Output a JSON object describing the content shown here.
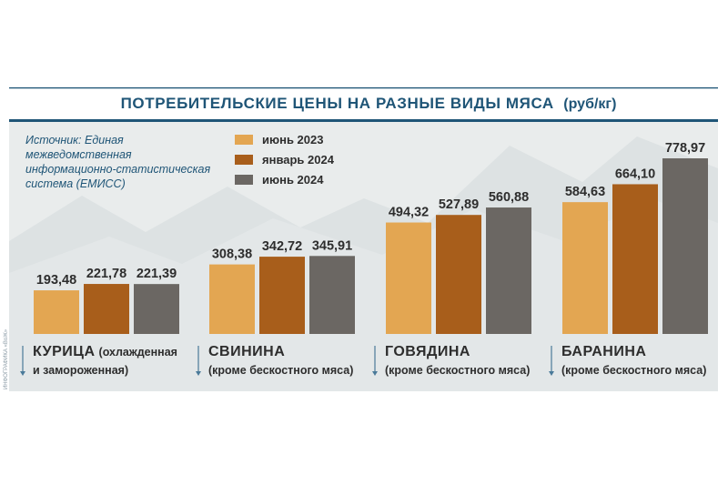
{
  "chart_data": {
    "type": "bar",
    "title": "ПОТРЕБИТЕЛЬСКИЕ ЦЕНЫ НА РАЗНЫЕ ВИДЫ МЯСА",
    "unit": "(руб/кг)",
    "source": [
      "Источник: Единая",
      "межведомственная",
      "информационно-статистическая",
      "система (ЕМИСС)"
    ],
    "credit": "ИНФОГРАФИКА «ВоЖ»",
    "categories": [
      {
        "main": "КУРИЦА",
        "suffix": "(охлажденная",
        "sub": "и замороженная)"
      },
      {
        "main": "СВИНИНА",
        "suffix": "",
        "sub": "(кроме бескостного мяса)"
      },
      {
        "main": "ГОВЯДИНА",
        "suffix": "",
        "sub": "(кроме бескостного мяса)"
      },
      {
        "main": "БАРАНИНА",
        "suffix": "",
        "sub": "(кроме бескостного мяса)"
      }
    ],
    "series": [
      {
        "name": "июнь 2023",
        "color": "#e3a652",
        "values": [
          193.48,
          308.38,
          494.32,
          584.63
        ],
        "labels": [
          "193,48",
          "308,38",
          "494,32",
          "584,63"
        ]
      },
      {
        "name": "январь 2024",
        "color": "#a85e1b",
        "values": [
          221.78,
          342.72,
          527.89,
          664.1
        ],
        "labels": [
          "221,78",
          "342,72",
          "527,89",
          "664,10"
        ]
      },
      {
        "name": "июнь 2024",
        "color": "#6b6763",
        "values": [
          221.39,
          345.91,
          560.88,
          778.97
        ],
        "labels": [
          "221,39",
          "345,91",
          "560,88",
          "778,97"
        ]
      }
    ],
    "legend_position": "top-left",
    "grid": false
  },
  "colors": {
    "title": "#1f5577",
    "background_panel": "#e9ecec",
    "mountain": "#dde2e3",
    "divider": "#1f5577"
  }
}
